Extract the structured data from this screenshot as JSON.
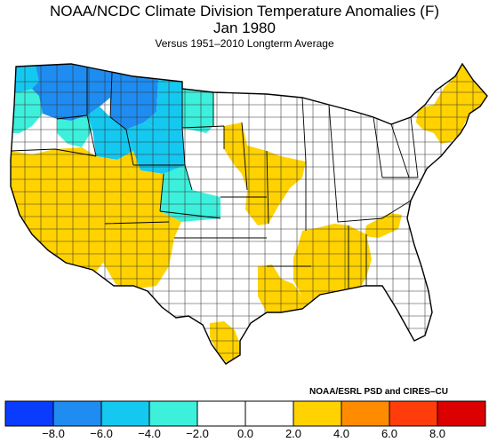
{
  "title": "NOAA/NCDC Climate Division Temperature Anomalies (F)",
  "period": "Jan 1980",
  "subtitle": "Versus 1951–2010 Longterm Average",
  "credit": "NOAA/ESRL PSD and CIRES–CU",
  "legend": {
    "colors": [
      "#0a3cff",
      "#1e8cf0",
      "#14c8f0",
      "#3cf0dc",
      "#ffffff",
      "#ffffff",
      "#ffd200",
      "#ff8c00",
      "#ff3c0a",
      "#dc0000"
    ],
    "labels": [
      "−8.0",
      "−6.0",
      "−4.0",
      "−2.0",
      "0.0",
      "2.0",
      "4.0",
      "6.0",
      "8.0"
    ]
  },
  "chart_data": {
    "type": "choropleth",
    "region": "Contiguous United States climate divisions",
    "units": "degrees F",
    "bins": [
      {
        "range": "< -8.0",
        "color": "#0a3cff"
      },
      {
        "range": "-8.0 to -6.0",
        "color": "#1e8cf0"
      },
      {
        "range": "-6.0 to -4.0",
        "color": "#14c8f0"
      },
      {
        "range": "-4.0 to -2.0",
        "color": "#3cf0dc"
      },
      {
        "range": "-2.0 to 0.0",
        "color": "#ffffff"
      },
      {
        "range": "0.0 to 2.0",
        "color": "#ffffff"
      },
      {
        "range": "2.0 to 4.0",
        "color": "#ffd200"
      },
      {
        "range": "4.0 to 6.0",
        "color": "#ff8c00"
      },
      {
        "range": "6.0 to 8.0",
        "color": "#ff3c0a"
      },
      {
        "range": "> 8.0",
        "color": "#dc0000"
      }
    ]
  }
}
